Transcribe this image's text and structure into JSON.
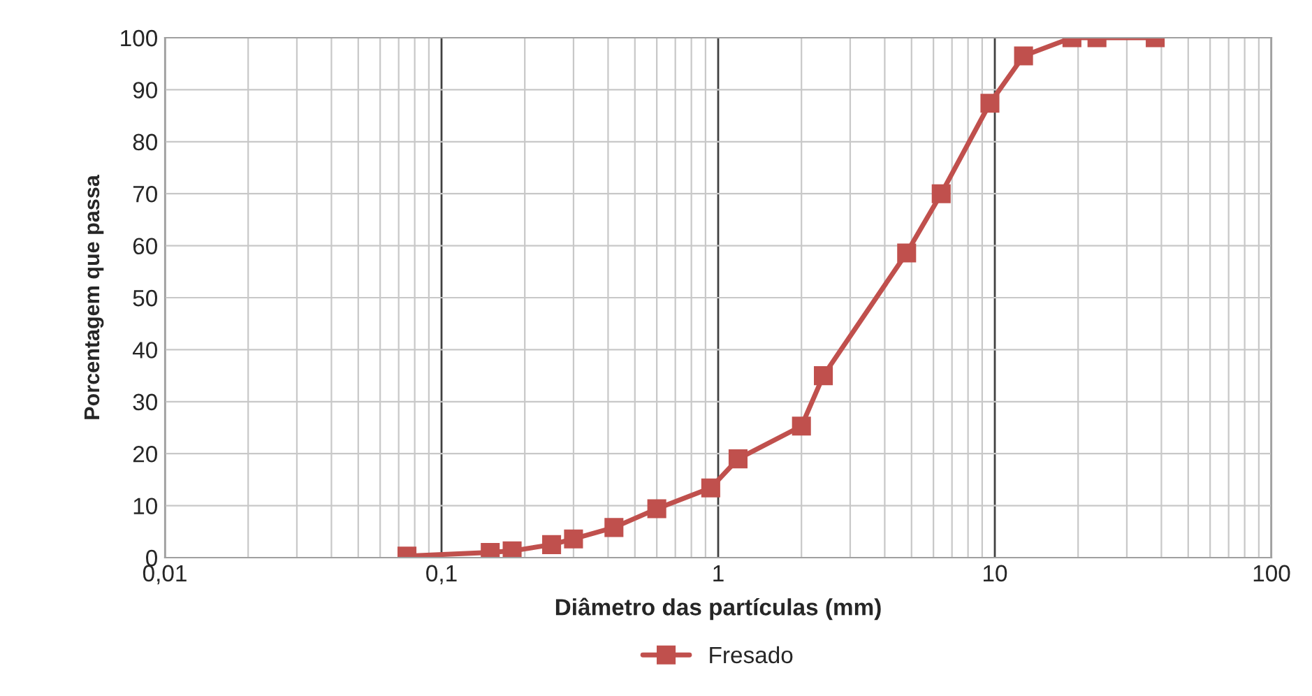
{
  "chart_data": {
    "type": "line",
    "xlabel": "Diâmetro das partículas (mm)",
    "ylabel": "Porcentagem que passa",
    "log": "x",
    "xlim": [
      0.01,
      100
    ],
    "ylim": [
      0,
      100
    ],
    "xticks": [
      {
        "value": 0.01,
        "label": "0,01"
      },
      {
        "value": 0.1,
        "label": "0,1"
      },
      1,
      10,
      100
    ],
    "yticks": [
      0,
      10,
      20,
      30,
      40,
      50,
      60,
      70,
      80,
      90,
      100
    ],
    "grid": true,
    "legend": "bottom",
    "marker": "square",
    "line_style": "solid",
    "series": [
      {
        "name": "Fresado",
        "color": "#c0504d",
        "x": [
          0.075,
          0.15,
          0.18,
          0.25,
          0.3,
          0.42,
          0.6,
          0.94,
          1.18,
          2.0,
          2.4,
          4.8,
          6.4,
          9.6,
          12.7,
          19,
          23.4,
          38
        ],
        "values": [
          0.3,
          1,
          1.3,
          2.5,
          3.6,
          5.8,
          9.4,
          13.4,
          19,
          25.3,
          35,
          58.6,
          70,
          87.4,
          96.5,
          100,
          100,
          100
        ]
      }
    ]
  }
}
